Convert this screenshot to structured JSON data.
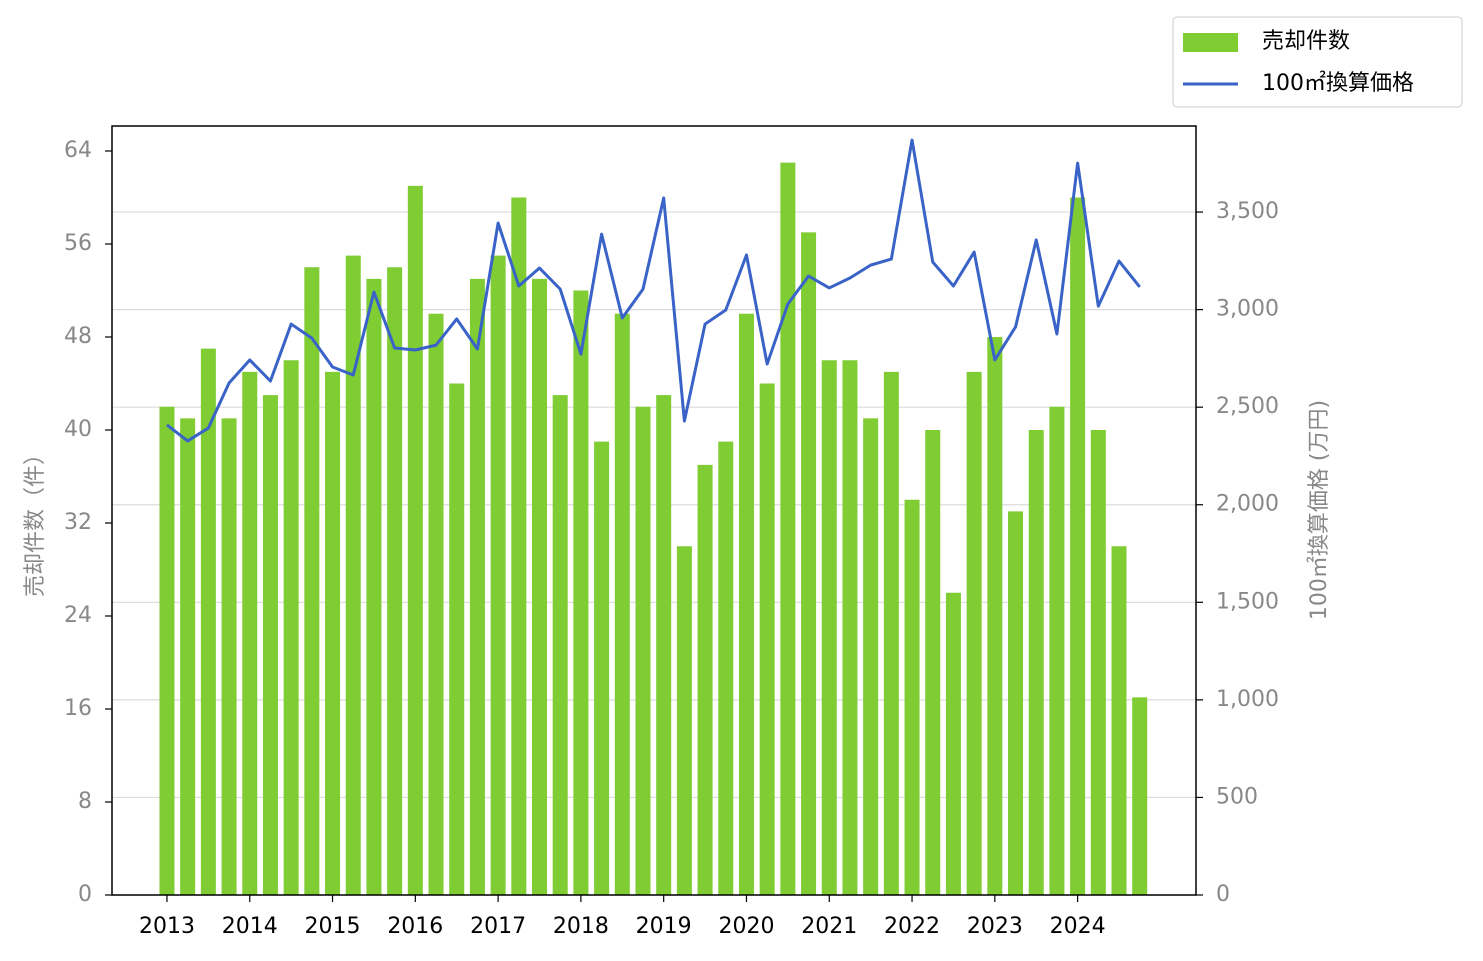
{
  "chart_data": {
    "type": "bar",
    "ylabel": "売却件数（件）",
    "y2label": "100㎡換算価格 (万円)",
    "x": [
      2013,
      2013.25,
      2013.5,
      2013.75,
      2014,
      2014.25,
      2014.5,
      2014.75,
      2015,
      2015.25,
      2015.5,
      2015.75,
      2016,
      2016.25,
      2016.5,
      2016.75,
      2017,
      2017.25,
      2017.5,
      2017.75,
      2018,
      2018.25,
      2018.5,
      2018.75,
      2019,
      2019.25,
      2019.5,
      2019.75,
      2020,
      2020.25,
      2020.5,
      2020.75,
      2021,
      2021.25,
      2021.5,
      2021.75,
      2022,
      2022.25,
      2022.5,
      2022.75,
      2023,
      2023.25,
      2023.5,
      2023.75,
      2024,
      2024.25,
      2024.5,
      2024.75
    ],
    "series": [
      {
        "name": "売却件数",
        "type": "bar",
        "color": "#7fcc33",
        "values": [
          42,
          41,
          47,
          41,
          45,
          43,
          46,
          54,
          45,
          55,
          53,
          54,
          61,
          50,
          44,
          53,
          55,
          60,
          53,
          43,
          52,
          39,
          50,
          42,
          43,
          30,
          37,
          39,
          50,
          44,
          63,
          57,
          46,
          46,
          41,
          45,
          34,
          40,
          26,
          45,
          48,
          33,
          40,
          42,
          60,
          40,
          30,
          17
        ]
      },
      {
        "name": "100㎡換算価格",
        "type": "line",
        "color": "#3a63c8",
        "axis": "y2",
        "values": [
          2409,
          2327,
          2393,
          2624,
          2742,
          2634,
          2926,
          2854,
          2706,
          2665,
          3090,
          2803,
          2793,
          2818,
          2952,
          2798,
          3444,
          3121,
          3213,
          3105,
          2772,
          3387,
          2957,
          3105,
          3572,
          2429,
          2926,
          2998,
          3280,
          2721,
          3029,
          3172,
          3111,
          3162,
          3228,
          3259,
          3869,
          3244,
          3121,
          3295,
          2742,
          2911,
          3357,
          2875,
          3751,
          3018,
          3249,
          3116
        ]
      }
    ],
    "xlim": [
      2012.336,
      2025.43
    ],
    "xticks": [
      2013,
      2014,
      2015,
      2016,
      2017,
      2018,
      2019,
      2020,
      2021,
      2022,
      2023,
      2024
    ],
    "ylim": [
      0,
      66.15
    ],
    "yticks": [
      0,
      8,
      16,
      24,
      32,
      40,
      48,
      56,
      64
    ],
    "y2lim": [
      0,
      3941
    ],
    "y2ticks": [
      0,
      500,
      {
        "value": 1000,
        "label": "1,000"
      },
      {
        "value": 1500,
        "label": "1,500"
      },
      {
        "value": 2000,
        "label": "2,000"
      },
      {
        "value": 2500,
        "label": "2,500"
      },
      {
        "value": 3000,
        "label": "3,000"
      },
      {
        "value": 3500,
        "label": "3,500"
      }
    ],
    "grid": "y2",
    "legend": "upper right outside"
  }
}
